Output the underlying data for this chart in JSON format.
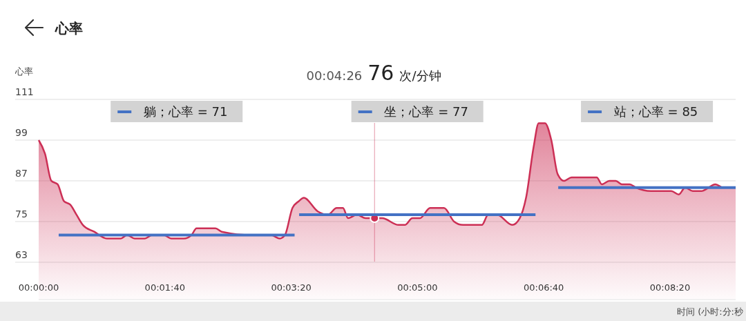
{
  "chart_data": {
    "type": "area",
    "title": "心率",
    "ylabel": "心率",
    "xlabel": "时间 (小时:分:秒",
    "grid": "y",
    "xlim": [
      0,
      0.15333
    ],
    "ylim": [
      52,
      111
    ],
    "xticks": [
      {
        "value": 0,
        "label": "00:00:00"
      },
      {
        "value": 0.02778,
        "label": "00:01:40"
      },
      {
        "value": 0.05556,
        "label": "00:03:20"
      },
      {
        "value": 0.08333,
        "label": "00:05:00"
      },
      {
        "value": 0.11111,
        "label": "00:06:40"
      },
      {
        "value": 0.13889,
        "label": "00:08:20"
      }
    ],
    "yticks": [
      63,
      75,
      87,
      99,
      111
    ],
    "annotations": [
      "00:04:26 76 次/分钟"
    ],
    "legend": "top",
    "ref_lines": [
      {
        "axis": "x",
        "value": 0.07389,
        "color": "#cc2f55"
      }
    ],
    "series": [
      {
        "color": "#cc2f55",
        "x": [
          0,
          0.00139,
          0.00278,
          0.00417,
          0.00556,
          0.00694,
          0.00833,
          0.00972,
          0.01222,
          0.015,
          0.01806,
          0.01944,
          0.02111,
          0.02333,
          0.025,
          0.0275,
          0.02917,
          0.03194,
          0.03361,
          0.03472,
          0.03889,
          0.04028,
          0.04694,
          0.05111,
          0.05306,
          0.05417,
          0.05583,
          0.05722,
          0.05833,
          0.06139,
          0.06361,
          0.06556,
          0.06694,
          0.06806,
          0.07,
          0.07194,
          0.07389,
          0.07556,
          0.07917,
          0.08056,
          0.08222,
          0.08389,
          0.08611,
          0.08917,
          0.09139,
          0.09333,
          0.0975,
          0.09889,
          0.10083,
          0.10417,
          0.10583,
          0.10722,
          0.10889,
          0.11,
          0.11139,
          0.11278,
          0.11417,
          0.11556,
          0.11722,
          0.12278,
          0.12389,
          0.12556,
          0.12694,
          0.12833,
          0.13,
          0.13139,
          0.13472,
          0.13917,
          0.14083,
          0.14222,
          0.14389,
          0.14583,
          0.14889,
          0.15056,
          0.15333
        ],
        "values": [
          99,
          95,
          87,
          86,
          81,
          80,
          77,
          74,
          72,
          70,
          70,
          71,
          70,
          70,
          71,
          71,
          70,
          70,
          71,
          73,
          73,
          72,
          71,
          71,
          70,
          71,
          79,
          81,
          82,
          78,
          77,
          79,
          79,
          76,
          77,
          76,
          76,
          76,
          74,
          74,
          76,
          76,
          79,
          79,
          75,
          74,
          74,
          77,
          77,
          74,
          76,
          82,
          97,
          104,
          104,
          99,
          89,
          87,
          88,
          88,
          86,
          87,
          87,
          86,
          86,
          85,
          84,
          84,
          83,
          85,
          84,
          84,
          86,
          85,
          85
        ]
      },
      {
        "type": "scatter",
        "color": "#cc2f55",
        "x": [
          0.07389
        ],
        "values": [
          76
        ]
      },
      {
        "type": "line",
        "name": "躺；心率 = 71",
        "color": "#4472c4",
        "x": [
          0.0044,
          0.0563
        ],
        "values": [
          71,
          71
        ]
      },
      {
        "type": "line",
        "name": "坐；心率 = 77",
        "color": "#4472c4",
        "x": [
          0.0573,
          0.1093
        ],
        "values": [
          77,
          77
        ]
      },
      {
        "type": "line",
        "name": "站；心率 = 85",
        "color": "#4472c4",
        "x": [
          0.1143,
          0.15333
        ],
        "values": [
          85,
          85
        ]
      }
    ]
  }
}
